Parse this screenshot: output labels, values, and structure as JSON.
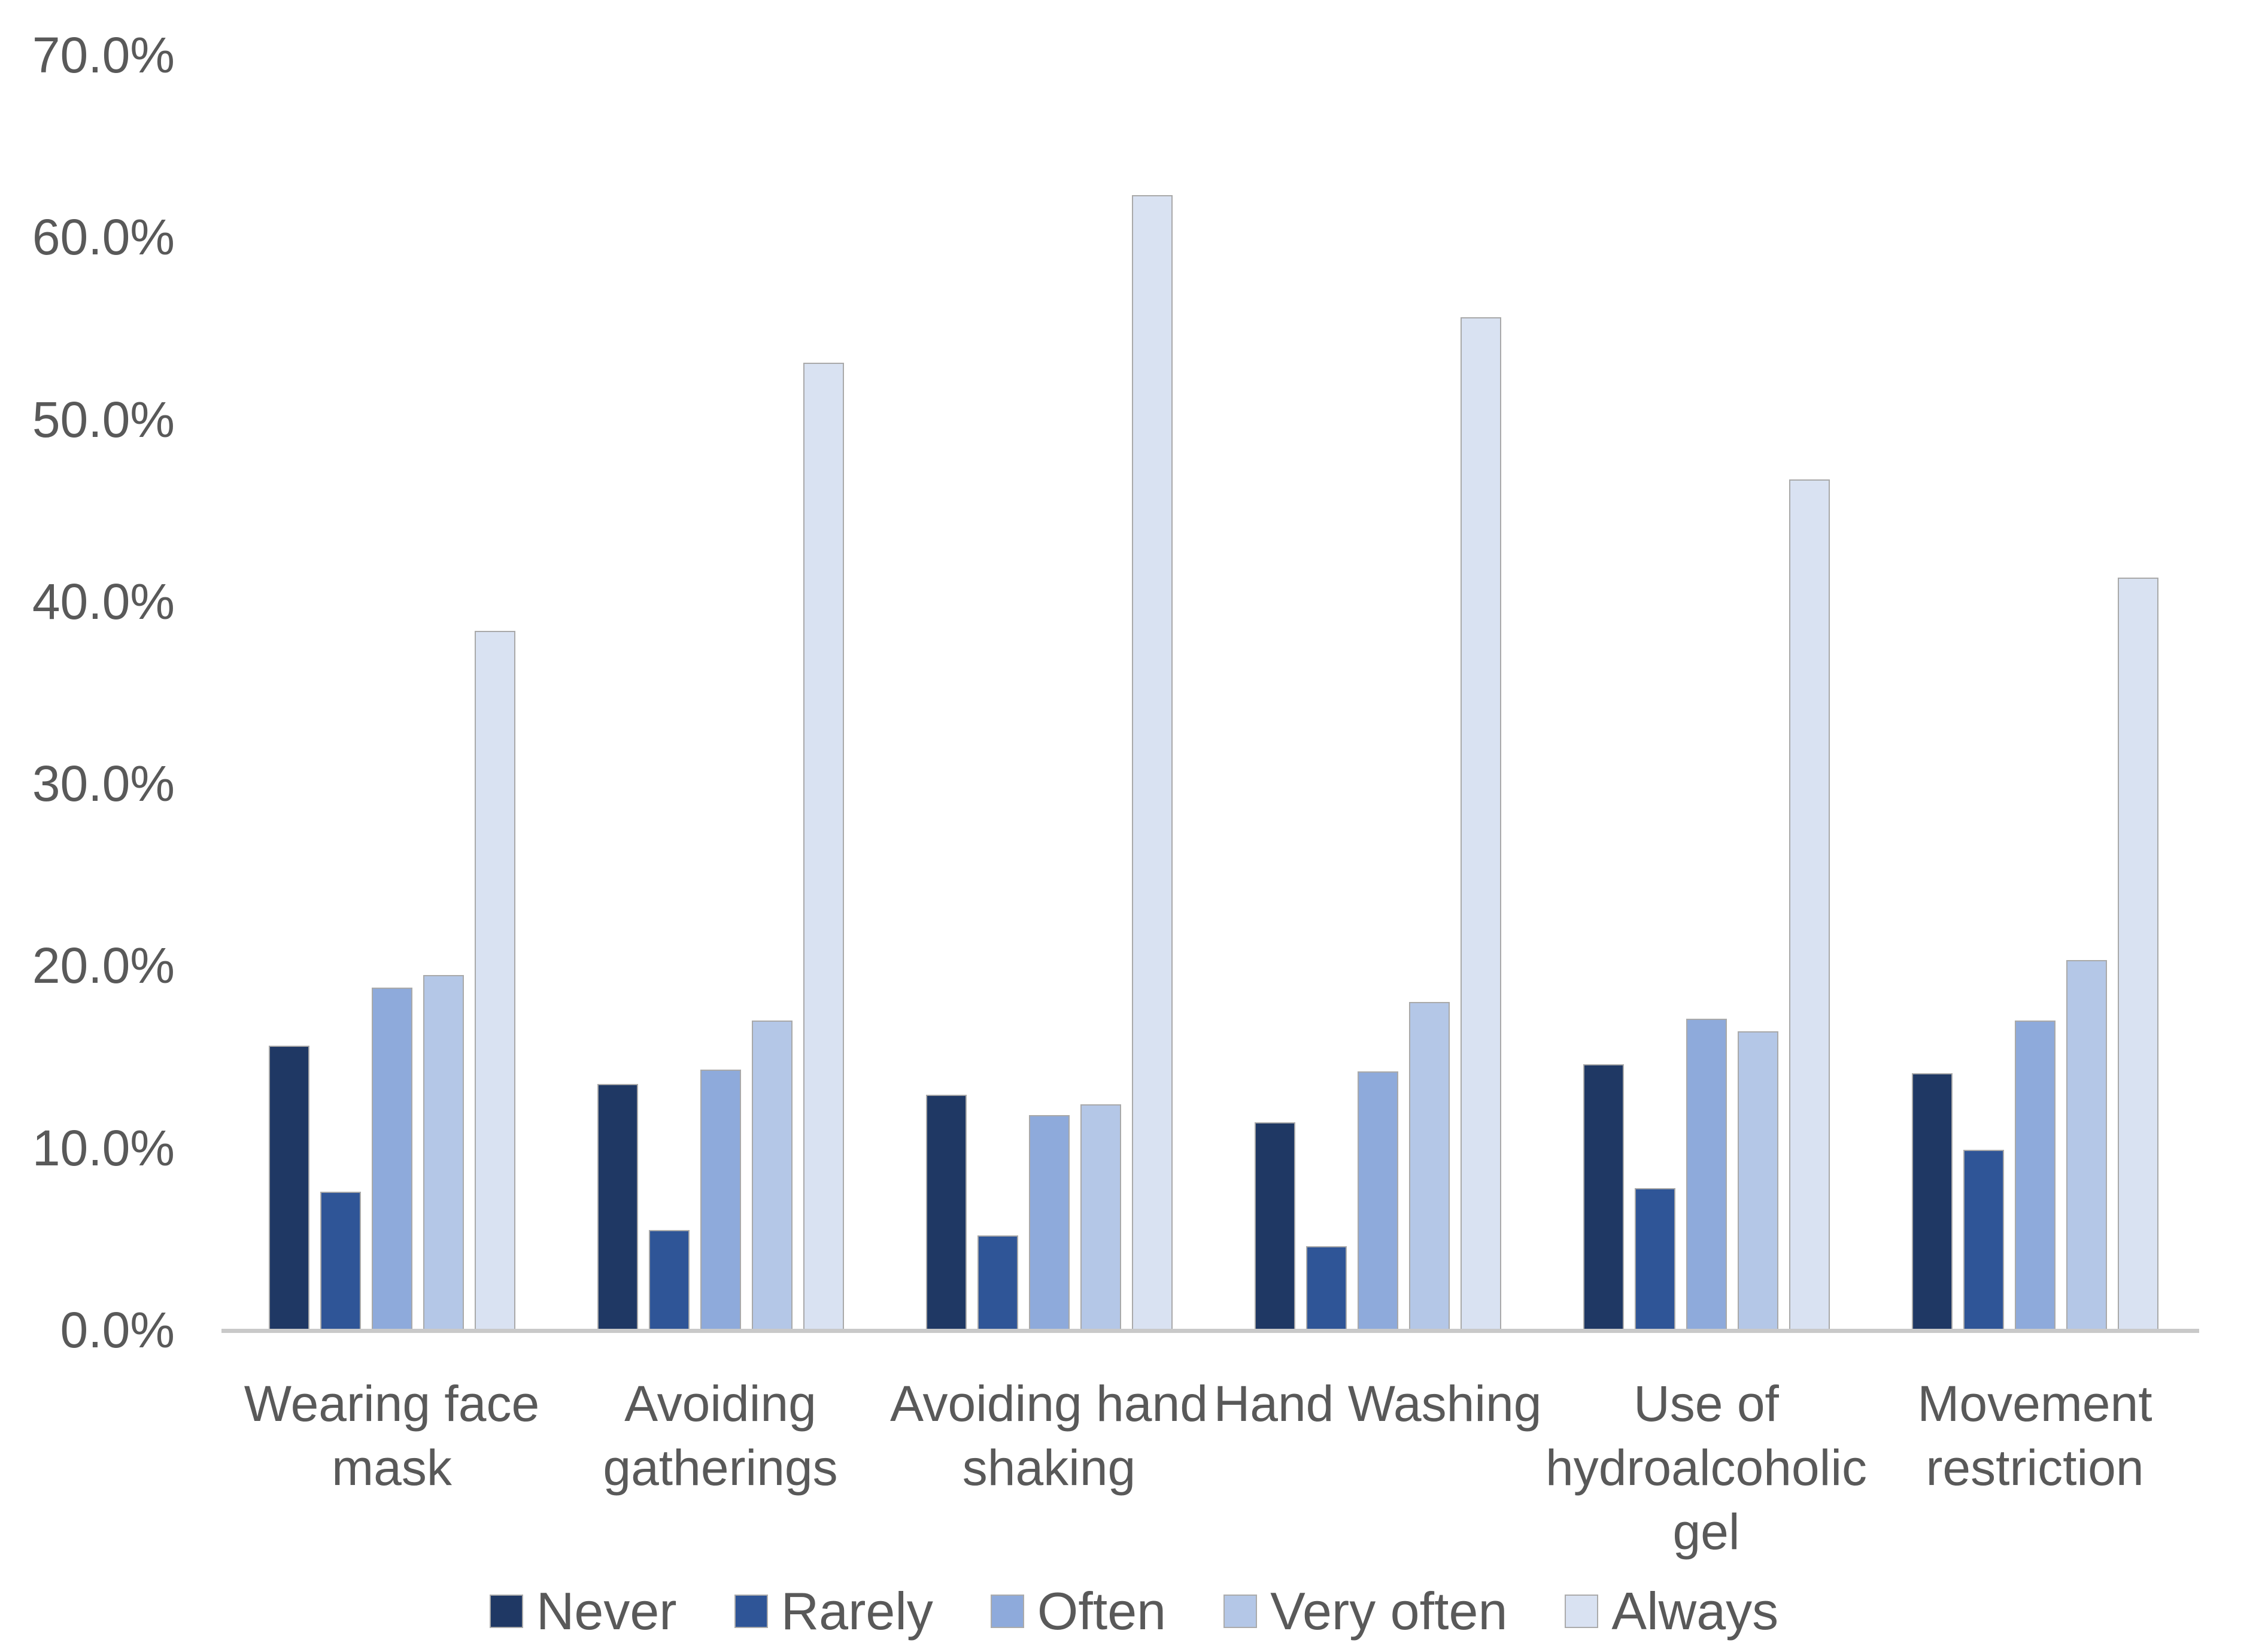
{
  "chart_data": {
    "type": "bar",
    "title": "",
    "categories": [
      "Wearing face mask",
      "Avoiding gatherings",
      "Avoiding hand shaking",
      "Hand Washing",
      "Use of hydroalcoholic gel",
      "Movement restriction"
    ],
    "series": [
      {
        "name": "Never",
        "color": "#1F3864",
        "values": [
          15.6,
          13.5,
          12.9,
          11.4,
          14.6,
          14.1
        ]
      },
      {
        "name": "Rarely",
        "color": "#2F5597",
        "values": [
          7.6,
          5.5,
          5.2,
          4.6,
          7.8,
          9.9
        ]
      },
      {
        "name": "Often",
        "color": "#8EAADB",
        "values": [
          18.8,
          14.3,
          11.8,
          14.2,
          17.1,
          17.0
        ]
      },
      {
        "name": "Very often",
        "color": "#B4C7E7",
        "values": [
          19.5,
          17.0,
          12.4,
          18.0,
          16.4,
          20.3
        ]
      },
      {
        "name": "Always",
        "color": "#D9E2F2",
        "values": [
          38.4,
          53.1,
          62.3,
          55.6,
          46.7,
          41.3
        ]
      }
    ],
    "xlabel": "",
    "ylabel": "",
    "ylim": [
      0,
      70
    ],
    "ytick_labels": [
      "0.0%",
      "10.0%",
      "20.0%",
      "30.0%",
      "40.0%",
      "50.0%",
      "60.0%",
      "70.0%"
    ],
    "grid": false,
    "legend_position": "bottom"
  },
  "style": {
    "background": "#FFFFFF",
    "text_color": "#595959",
    "axis_line_color": "#C9C9C9",
    "bar_border_color": "#A9A9A9"
  }
}
